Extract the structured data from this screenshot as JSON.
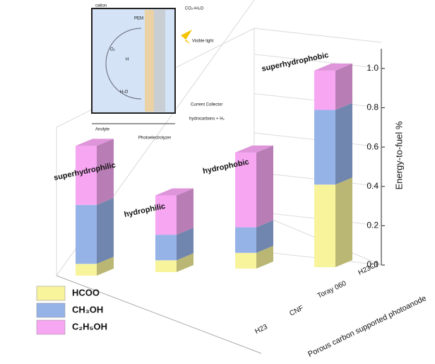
{
  "chart_data": {
    "type": "bar3d",
    "y_label": "Energy-to-fuel %",
    "x_label": "Porous carbon supported photoanode",
    "categories": [
      "H23",
      "CNF",
      "Toray 060",
      "H23C7"
    ],
    "annotations": [
      "superhydrophilic",
      "hydrophilic",
      "hydrophobic",
      "superhydrophobic"
    ],
    "series": [
      {
        "name": "HCOO",
        "color": "#f8f49c",
        "values": [
          0.06,
          0.06,
          0.08,
          0.42
        ]
      },
      {
        "name": "CH₃OH",
        "color": "#96b3e8",
        "values": [
          0.3,
          0.13,
          0.13,
          0.38
        ]
      },
      {
        "name": "C₂H₅OH",
        "color": "#f7a6f2",
        "values": [
          0.3,
          0.2,
          0.38,
          0.2
        ]
      }
    ],
    "ylim": [
      0,
      1.1
    ],
    "yticks": [
      {
        "value": 0,
        "label": "0.0"
      },
      0.2,
      0.4,
      0.6,
      0.8,
      {
        "value": 1,
        "label": "1.0"
      }
    ],
    "grid": true
  },
  "inset": {
    "labels": [
      "cation",
      "PEM",
      "CO₂+H₂O",
      "Visible light",
      "O₂",
      "H",
      "H₂O",
      "Current Collector",
      "hydrocarbons + H₂",
      "Anolyte",
      "Photoelectrolyzer"
    ]
  }
}
